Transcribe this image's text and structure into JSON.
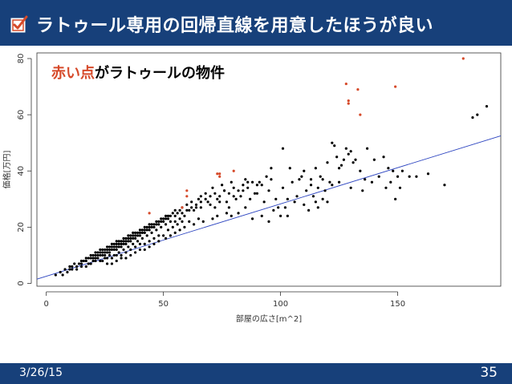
{
  "slide": {
    "title": "ラトゥール専用の回帰直線を用意したほうが良い",
    "date": "3/26/15",
    "page_number": "35",
    "colors": {
      "header": "#17407a",
      "red_points": "#d64a2a",
      "black_points": "#000000",
      "regression_line": "#2c44c0"
    },
    "icons": [
      "checkbox-checked-icon"
    ]
  },
  "chart_data": {
    "type": "scatter",
    "annotation": {
      "parts": [
        "赤い点",
        "がラトゥールの物件"
      ],
      "colors": [
        "#d64a2a",
        "#000000"
      ]
    },
    "xlabel": "部屋の広さ[m^2]",
    "ylabel": "価格[万円]",
    "xlim": [
      -4,
      194
    ],
    "ylim": [
      -1,
      82
    ],
    "xticks": [
      0,
      50,
      100,
      150
    ],
    "yticks": [
      0,
      20,
      40,
      60,
      80
    ],
    "grid": false,
    "regression_line": {
      "x": [
        -4,
        194
      ],
      "y": [
        1.5,
        52.5
      ]
    },
    "series": [
      {
        "color": "#d64a2a",
        "points": [
          [
            178,
            80
          ],
          [
            128,
            71
          ],
          [
            133,
            69
          ],
          [
            149,
            70
          ],
          [
            129,
            65
          ],
          [
            129,
            64
          ],
          [
            134,
            60
          ],
          [
            80,
            40
          ],
          [
            74,
            39
          ],
          [
            73,
            39
          ],
          [
            74,
            38
          ],
          [
            60,
            33
          ],
          [
            60,
            31
          ],
          [
            58,
            27
          ],
          [
            44,
            25
          ]
        ]
      },
      {
        "color": "#000000",
        "points": [
          [
            4,
            3
          ],
          [
            6,
            4
          ],
          [
            8,
            5
          ],
          [
            10,
            5
          ],
          [
            10,
            6
          ],
          [
            11,
            6
          ],
          [
            12,
            7
          ],
          [
            13,
            6
          ],
          [
            14,
            7
          ],
          [
            15,
            8
          ],
          [
            15,
            7
          ],
          [
            16,
            8
          ],
          [
            17,
            8
          ],
          [
            17,
            9
          ],
          [
            18,
            9
          ],
          [
            18,
            7
          ],
          [
            19,
            9
          ],
          [
            19,
            10
          ],
          [
            20,
            9
          ],
          [
            20,
            10
          ],
          [
            20,
            8
          ],
          [
            21,
            9
          ],
          [
            21,
            10
          ],
          [
            21,
            11
          ],
          [
            22,
            10
          ],
          [
            22,
            11
          ],
          [
            22,
            9
          ],
          [
            23,
            10
          ],
          [
            23,
            11
          ],
          [
            23,
            12
          ],
          [
            24,
            11
          ],
          [
            24,
            10
          ],
          [
            24,
            12
          ],
          [
            25,
            11
          ],
          [
            25,
            12
          ],
          [
            25,
            10
          ],
          [
            26,
            12
          ],
          [
            26,
            11
          ],
          [
            26,
            13
          ],
          [
            27,
            12
          ],
          [
            27,
            13
          ],
          [
            27,
            11
          ],
          [
            28,
            12
          ],
          [
            28,
            13
          ],
          [
            28,
            14
          ],
          [
            29,
            13
          ],
          [
            29,
            12
          ],
          [
            29,
            14
          ],
          [
            30,
            13
          ],
          [
            30,
            14
          ],
          [
            30,
            12
          ],
          [
            30,
            15
          ],
          [
            31,
            14
          ],
          [
            31,
            13
          ],
          [
            31,
            15
          ],
          [
            32,
            14
          ],
          [
            32,
            15
          ],
          [
            32,
            13
          ],
          [
            33,
            15
          ],
          [
            33,
            14
          ],
          [
            33,
            16
          ],
          [
            34,
            15
          ],
          [
            34,
            16
          ],
          [
            34,
            14
          ],
          [
            35,
            16
          ],
          [
            35,
            15
          ],
          [
            35,
            17
          ],
          [
            36,
            16
          ],
          [
            36,
            15
          ],
          [
            36,
            17
          ],
          [
            37,
            16
          ],
          [
            37,
            17
          ],
          [
            37,
            18
          ],
          [
            38,
            17
          ],
          [
            38,
            16
          ],
          [
            38,
            18
          ],
          [
            39,
            17
          ],
          [
            39,
            18
          ],
          [
            40,
            18
          ],
          [
            40,
            17
          ],
          [
            40,
            19
          ],
          [
            41,
            18
          ],
          [
            41,
            19
          ],
          [
            42,
            19
          ],
          [
            42,
            18
          ],
          [
            42,
            20
          ],
          [
            43,
            19
          ],
          [
            43,
            20
          ],
          [
            44,
            20
          ],
          [
            44,
            19
          ],
          [
            44,
            21
          ],
          [
            45,
            20
          ],
          [
            45,
            21
          ],
          [
            46,
            21
          ],
          [
            46,
            20
          ],
          [
            47,
            21
          ],
          [
            47,
            22
          ],
          [
            48,
            22
          ],
          [
            48,
            21
          ],
          [
            49,
            22
          ],
          [
            49,
            23
          ],
          [
            50,
            22
          ],
          [
            50,
            23
          ],
          [
            51,
            23
          ],
          [
            51,
            24
          ],
          [
            52,
            23
          ],
          [
            52,
            24
          ],
          [
            53,
            24
          ],
          [
            54,
            25
          ],
          [
            55,
            24
          ],
          [
            55,
            26
          ],
          [
            56,
            25
          ],
          [
            57,
            26
          ],
          [
            58,
            25
          ],
          [
            58,
            27
          ],
          [
            60,
            26
          ],
          [
            60,
            28
          ],
          [
            62,
            27
          ],
          [
            62,
            29
          ],
          [
            64,
            28
          ],
          [
            65,
            30
          ],
          [
            66,
            29
          ],
          [
            68,
            30
          ],
          [
            68,
            32
          ],
          [
            70,
            31
          ],
          [
            72,
            32
          ],
          [
            74,
            31
          ],
          [
            76,
            33
          ],
          [
            78,
            32
          ],
          [
            80,
            34
          ],
          [
            82,
            33
          ],
          [
            84,
            35
          ],
          [
            86,
            34
          ],
          [
            88,
            36
          ],
          [
            90,
            35
          ],
          [
            63,
            26
          ],
          [
            66,
            31
          ],
          [
            69,
            29
          ],
          [
            71,
            34
          ],
          [
            73,
            30
          ],
          [
            75,
            35
          ],
          [
            77,
            29
          ],
          [
            79,
            36
          ],
          [
            81,
            30
          ],
          [
            83,
            31
          ],
          [
            85,
            37
          ],
          [
            87,
            30
          ],
          [
            89,
            32
          ],
          [
            91,
            36
          ],
          [
            93,
            29
          ],
          [
            95,
            33
          ],
          [
            96,
            37
          ],
          [
            98,
            30
          ],
          [
            99,
            27
          ],
          [
            101,
            34
          ],
          [
            103,
            30
          ],
          [
            105,
            36
          ],
          [
            107,
            31
          ],
          [
            109,
            38
          ],
          [
            111,
            33
          ],
          [
            113,
            35
          ],
          [
            115,
            29
          ],
          [
            117,
            38
          ],
          [
            119,
            33
          ],
          [
            121,
            36
          ],
          [
            122,
            50
          ],
          [
            123,
            49
          ],
          [
            124,
            45
          ],
          [
            126,
            42
          ],
          [
            128,
            48
          ],
          [
            129,
            46
          ],
          [
            130,
            47
          ],
          [
            131,
            43
          ],
          [
            134,
            40
          ],
          [
            136,
            37
          ],
          [
            139,
            36
          ],
          [
            142,
            38
          ],
          [
            144,
            45
          ],
          [
            146,
            41
          ],
          [
            147,
            36
          ],
          [
            148,
            40
          ],
          [
            149,
            30
          ],
          [
            151,
            34
          ],
          [
            152,
            40
          ],
          [
            155,
            38
          ],
          [
            158,
            38
          ],
          [
            163,
            39
          ],
          [
            170,
            35
          ],
          [
            182,
            59
          ],
          [
            184,
            60
          ],
          [
            188,
            63
          ],
          [
            101,
            48
          ],
          [
            104,
            41
          ],
          [
            108,
            37
          ],
          [
            96,
            41
          ],
          [
            94,
            38
          ],
          [
            90,
            32
          ],
          [
            86,
            36
          ],
          [
            92,
            35
          ],
          [
            84,
            33
          ],
          [
            80,
            31
          ],
          [
            78,
            27
          ],
          [
            76,
            33
          ],
          [
            74,
            29
          ],
          [
            72,
            27
          ],
          [
            70,
            28
          ],
          [
            66,
            27
          ],
          [
            64,
            27
          ],
          [
            61,
            26
          ],
          [
            59,
            24
          ],
          [
            57,
            23
          ],
          [
            55,
            22
          ],
          [
            53,
            22
          ],
          [
            51,
            21
          ],
          [
            49,
            20
          ],
          [
            47,
            19
          ],
          [
            45,
            18
          ],
          [
            43,
            17
          ],
          [
            41,
            16
          ],
          [
            39,
            15
          ],
          [
            37,
            14
          ],
          [
            35,
            13
          ],
          [
            33,
            12
          ],
          [
            31,
            11
          ],
          [
            29,
            10
          ],
          [
            27,
            10
          ],
          [
            25,
            9
          ],
          [
            23,
            8
          ],
          [
            21,
            8
          ],
          [
            19,
            7
          ],
          [
            17,
            6
          ],
          [
            15,
            6
          ],
          [
            13,
            5
          ],
          [
            11,
            5
          ],
          [
            9,
            4
          ],
          [
            7,
            3
          ],
          [
            52,
            19
          ],
          [
            54,
            20
          ],
          [
            56,
            21
          ],
          [
            58,
            22
          ],
          [
            46,
            16
          ],
          [
            48,
            17
          ],
          [
            44,
            15
          ],
          [
            42,
            14
          ],
          [
            40,
            14
          ],
          [
            38,
            13
          ],
          [
            36,
            12
          ],
          [
            34,
            11
          ],
          [
            32,
            10
          ],
          [
            30,
            10
          ],
          [
            28,
            9
          ],
          [
            26,
            9
          ],
          [
            24,
            8
          ],
          [
            102,
            27
          ],
          [
            106,
            29
          ],
          [
            110,
            28
          ],
          [
            114,
            31
          ],
          [
            118,
            30
          ],
          [
            112,
            26
          ],
          [
            116,
            27
          ],
          [
            120,
            29
          ],
          [
            97,
            26
          ],
          [
            100,
            24
          ],
          [
            103,
            24
          ],
          [
            95,
            22
          ],
          [
            92,
            24
          ],
          [
            88,
            23
          ],
          [
            85,
            27
          ],
          [
            82,
            25
          ],
          [
            79,
            24
          ],
          [
            77,
            25
          ],
          [
            73,
            24
          ],
          [
            71,
            23
          ],
          [
            67,
            22
          ],
          [
            65,
            23
          ],
          [
            63,
            21
          ],
          [
            61,
            22
          ],
          [
            59,
            20
          ],
          [
            57,
            19
          ],
          [
            55,
            18
          ],
          [
            53,
            17
          ],
          [
            51,
            16
          ],
          [
            50,
            17
          ],
          [
            48,
            15
          ],
          [
            46,
            14
          ],
          [
            44,
            13
          ],
          [
            42,
            12
          ],
          [
            40,
            12
          ],
          [
            38,
            11
          ],
          [
            36,
            10
          ],
          [
            34,
            9
          ],
          [
            32,
            9
          ],
          [
            30,
            8
          ],
          [
            28,
            7
          ],
          [
            26,
            7
          ],
          [
            110,
            40
          ],
          [
            115,
            41
          ],
          [
            118,
            37
          ],
          [
            120,
            43
          ],
          [
            125,
            41
          ],
          [
            127,
            44
          ],
          [
            132,
            44
          ],
          [
            137,
            48
          ],
          [
            140,
            44
          ],
          [
            145,
            34
          ],
          [
            150,
            38
          ],
          [
            135,
            33
          ],
          [
            130,
            34
          ],
          [
            125,
            36
          ],
          [
            122,
            35
          ],
          [
            116,
            34
          ],
          [
            113,
            37
          ]
        ]
      }
    ]
  }
}
